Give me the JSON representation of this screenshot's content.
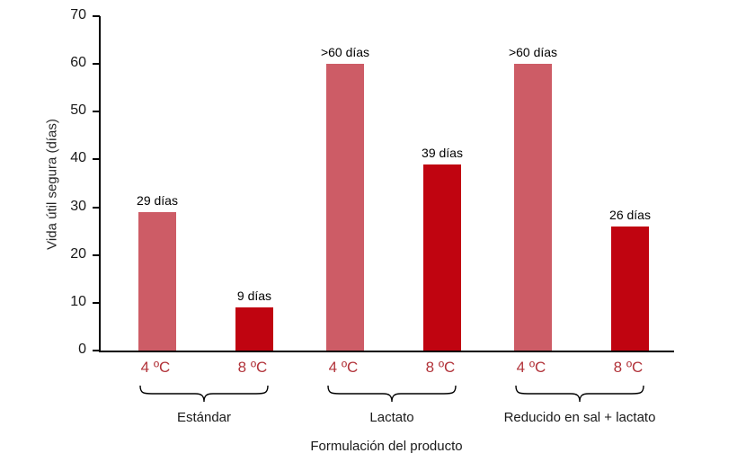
{
  "chart_data": {
    "type": "bar",
    "xlabel": "Formulación del producto",
    "ylabel": "Vida útil segura (días)",
    "ylim": [
      0,
      70
    ],
    "ytick_step": 10,
    "grid": false,
    "legend": "none",
    "categories": [
      "Estándar",
      "Lactato",
      "Reducido en sal + lactato"
    ],
    "series": [
      {
        "name": "4 ºC",
        "color": "#CD5C66",
        "values": [
          29,
          60,
          60
        ],
        "value_labels": [
          "29 días",
          ">60 días",
          ">60 días"
        ]
      },
      {
        "name": "8 ºC",
        "color": "#C00410",
        "values": [
          9,
          39,
          26
        ],
        "value_labels": [
          "9 días",
          "39 días",
          "26 días"
        ]
      }
    ],
    "colors": {
      "bar_4c": "#CD5C66",
      "bar_8c": "#C00410",
      "x_tick_label": "#B2333A",
      "axis": "#000000",
      "text": "#1A1A1A"
    }
  }
}
